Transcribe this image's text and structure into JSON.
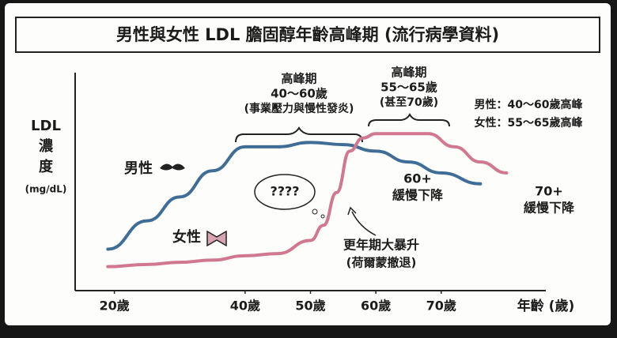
{
  "chart_data": {
    "type": "line",
    "title": "男性與女性 LDL 膽固醇年齡高峰期 (流行病學資料)",
    "y_label": [
      "LDL",
      "濃",
      "度",
      "(mg/dL)"
    ],
    "x_label": "年齡 (歲)",
    "xlim": [
      14,
      86
    ],
    "xticks": [
      {
        "value": 20,
        "label": "20歲"
      },
      {
        "value": 40,
        "label": "40歲"
      },
      {
        "value": 50,
        "label": "50歲"
      },
      {
        "value": 60,
        "label": "60歲"
      },
      {
        "value": 70,
        "label": "70歲"
      }
    ],
    "ylim": [
      0,
      100
    ],
    "series": [
      {
        "name": "男性",
        "color": "#3f6d96",
        "x": [
          19,
          25,
          30,
          35,
          40,
          45,
          50,
          55,
          60,
          65,
          70,
          76
        ],
        "values": [
          19,
          32,
          43,
          55,
          66,
          66,
          68,
          67,
          64,
          59,
          54,
          49
        ]
      },
      {
        "name": "女性",
        "color": "#d07890",
        "x": [
          19,
          25,
          30,
          35,
          40,
          45,
          50,
          52,
          54,
          56,
          58,
          60,
          65,
          68,
          72,
          76,
          80
        ],
        "values": [
          11,
          12,
          13,
          14,
          16,
          17,
          23,
          30,
          45,
          64,
          70,
          72,
          72,
          72,
          66,
          59,
          54
        ]
      }
    ],
    "annotations": [
      {
        "lines": [
          "高峰期",
          "40～60歲",
          "(事業壓力與慢性發炎)"
        ]
      },
      {
        "lines": [
          "高峰期",
          "55～65歲",
          "(甚至70歲)"
        ]
      },
      {
        "lines": [
          "男性：40～60歲高峰",
          "女性：55～65歲高峰"
        ]
      },
      {
        "lines": [
          "60+",
          "緩慢下降"
        ]
      },
      {
        "lines": [
          "70+",
          "緩慢下降"
        ]
      },
      {
        "lines": [
          "????"
        ]
      },
      {
        "lines": [
          "更年期大暴升",
          "(荷爾蒙撤退)"
        ]
      }
    ]
  }
}
